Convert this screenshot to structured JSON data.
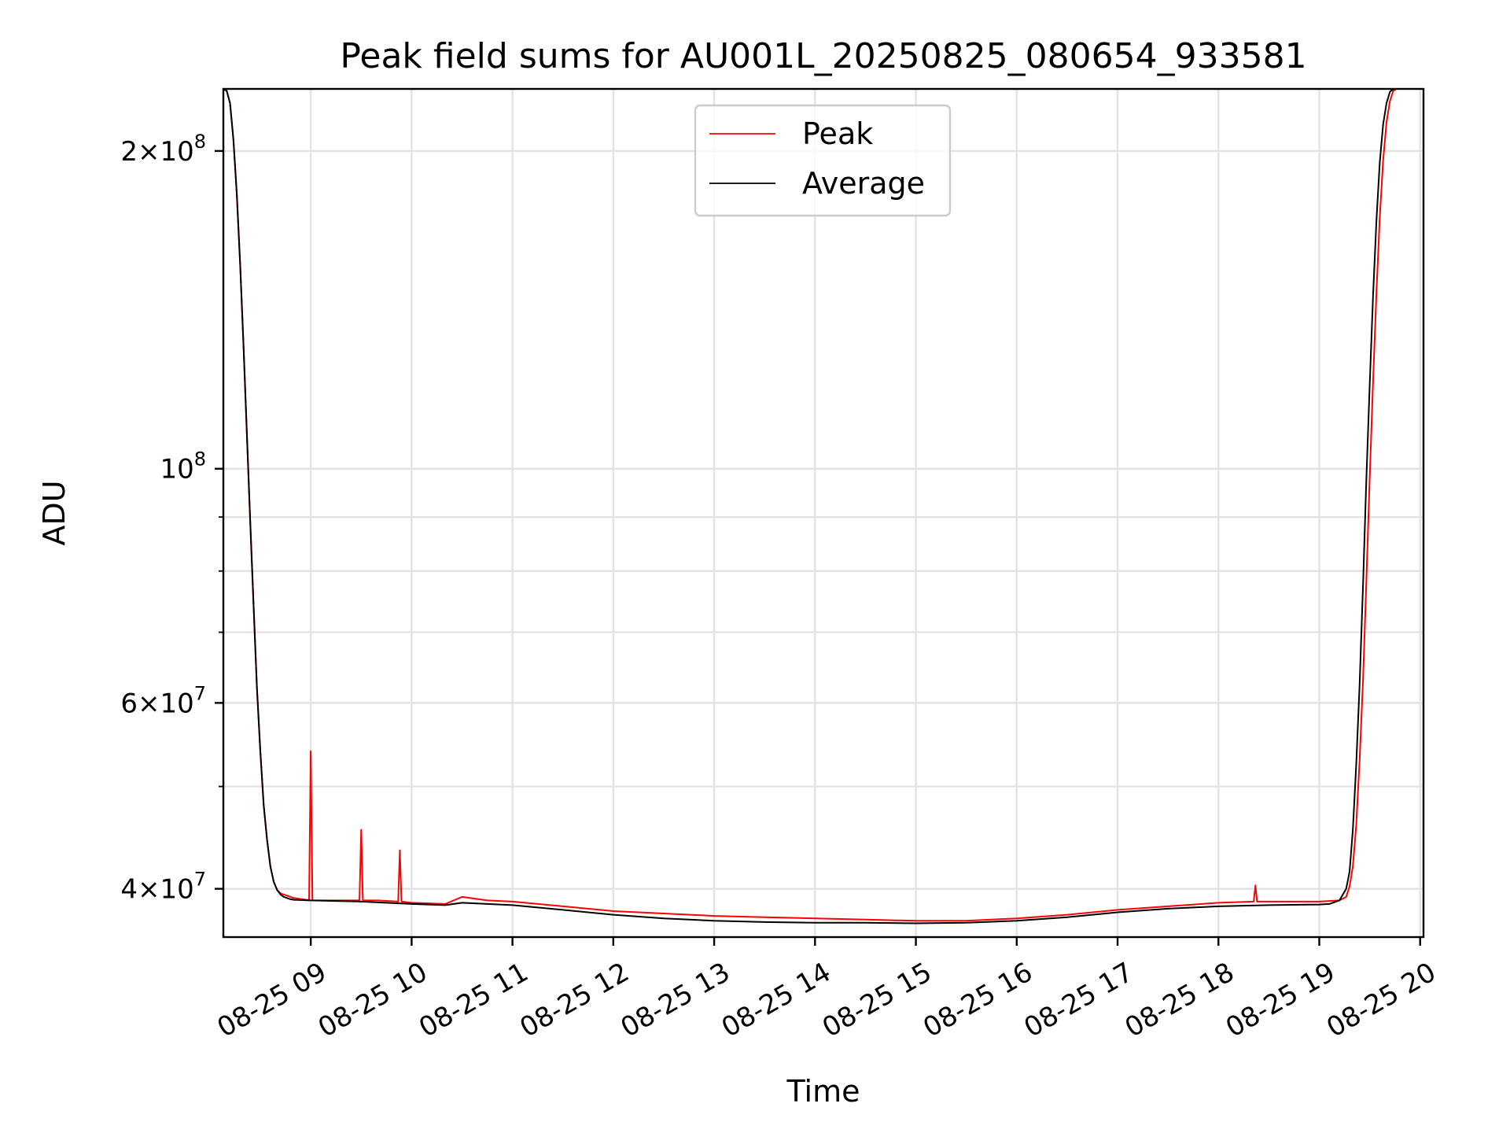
{
  "chart_data": {
    "type": "line",
    "title": "Peak field sums for AU001L_20250825_080654_933581",
    "xlabel": "Time",
    "ylabel": "ADU",
    "yscale": "log",
    "ylim": [
      36000000,
      229000000
    ],
    "xlim": [
      "2025-08-25 08:08",
      "2025-08-25 20:02"
    ],
    "grid": true,
    "legend_position": "top-center",
    "x_ticks": [
      "08-25 09",
      "08-25 10",
      "08-25 11",
      "08-25 12",
      "08-25 13",
      "08-25 14",
      "08-25 15",
      "08-25 16",
      "08-25 17",
      "08-25 18",
      "08-25 19",
      "08-25 20"
    ],
    "y_ticks": [
      {
        "value": 40000000,
        "mantissa": "4",
        "exp": "7"
      },
      {
        "value": 60000000,
        "mantissa": "6",
        "exp": "7"
      },
      {
        "value": 100000000,
        "mantissa": "",
        "exp": "8"
      },
      {
        "value": 200000000,
        "mantissa": "2",
        "exp": "8"
      }
    ],
    "series": [
      {
        "name": "Peak",
        "color": "#ff0000",
        "x": [
          "2025-08-25 08:08",
          "2025-08-25 08:10",
          "2025-08-25 08:12",
          "2025-08-25 08:14",
          "2025-08-25 08:16",
          "2025-08-25 08:18",
          "2025-08-25 08:20",
          "2025-08-25 08:22",
          "2025-08-25 08:24",
          "2025-08-25 08:26",
          "2025-08-25 08:28",
          "2025-08-25 08:30",
          "2025-08-25 08:32",
          "2025-08-25 08:34",
          "2025-08-25 08:36",
          "2025-08-25 08:38",
          "2025-08-25 08:40",
          "2025-08-25 08:42",
          "2025-08-25 08:44",
          "2025-08-25 08:46",
          "2025-08-25 08:48",
          "2025-08-25 08:50",
          "2025-08-25 08:55",
          "2025-08-25 08:59",
          "2025-08-25 09:00",
          "2025-08-25 09:01",
          "2025-08-25 09:10",
          "2025-08-25 09:18",
          "2025-08-25 09:29",
          "2025-08-25 09:30",
          "2025-08-25 09:31",
          "2025-08-25 09:40",
          "2025-08-25 09:52",
          "2025-08-25 09:53",
          "2025-08-25 09:54",
          "2025-08-25 10:00",
          "2025-08-25 10:20",
          "2025-08-25 10:30",
          "2025-08-25 10:45",
          "2025-08-25 11:00",
          "2025-08-25 11:30",
          "2025-08-25 12:00",
          "2025-08-25 12:30",
          "2025-08-25 13:00",
          "2025-08-25 13:30",
          "2025-08-25 14:00",
          "2025-08-25 14:30",
          "2025-08-25 15:00",
          "2025-08-25 15:30",
          "2025-08-25 16:00",
          "2025-08-25 16:30",
          "2025-08-25 17:00",
          "2025-08-25 17:30",
          "2025-08-25 18:00",
          "2025-08-25 18:21",
          "2025-08-25 18:22",
          "2025-08-25 18:23",
          "2025-08-25 18:30",
          "2025-08-25 19:00",
          "2025-08-25 19:06",
          "2025-08-25 19:12",
          "2025-08-25 19:16",
          "2025-08-25 19:18",
          "2025-08-25 19:20",
          "2025-08-25 19:22",
          "2025-08-25 19:24",
          "2025-08-25 19:26",
          "2025-08-25 19:28",
          "2025-08-25 19:30",
          "2025-08-25 19:32",
          "2025-08-25 19:34",
          "2025-08-25 19:36",
          "2025-08-25 19:38",
          "2025-08-25 19:40",
          "2025-08-25 19:42",
          "2025-08-25 19:44",
          "2025-08-25 19:46",
          "2025-08-25 19:48",
          "2025-08-25 19:50",
          "2025-08-25 19:52"
        ],
        "y": [
          229000000,
          228000000,
          222000000,
          205000000,
          182000000,
          156000000,
          131000000,
          108000000,
          89000000,
          74000000,
          62000000,
          54000000,
          48000000,
          44500000,
          42000000,
          40600000,
          39900000,
          39600000,
          39500000,
          39400000,
          39300000,
          39200000,
          39100000,
          39000000,
          54000000,
          39000000,
          39000000,
          39000000,
          39000000,
          45500000,
          39000000,
          39000000,
          38900000,
          43500000,
          38900000,
          38800000,
          38700000,
          39300000,
          39000000,
          38900000,
          38500000,
          38100000,
          37900000,
          37700000,
          37600000,
          37500000,
          37400000,
          37300000,
          37300000,
          37500000,
          37800000,
          38200000,
          38500000,
          38800000,
          38900000,
          40300000,
          38900000,
          38900000,
          38900000,
          38950000,
          39000000,
          39300000,
          40200000,
          42000000,
          46000000,
          53000000,
          63000000,
          78000000,
          98000000,
          121000000,
          147000000,
          173000000,
          196000000,
          213000000,
          223000000,
          228000000,
          229000000,
          229000000,
          229000000,
          229000000
        ]
      },
      {
        "name": "Average",
        "color": "#000000",
        "x": [
          "2025-08-25 08:08",
          "2025-08-25 08:10",
          "2025-08-25 08:12",
          "2025-08-25 08:14",
          "2025-08-25 08:16",
          "2025-08-25 08:18",
          "2025-08-25 08:20",
          "2025-08-25 08:22",
          "2025-08-25 08:24",
          "2025-08-25 08:26",
          "2025-08-25 08:28",
          "2025-08-25 08:30",
          "2025-08-25 08:32",
          "2025-08-25 08:34",
          "2025-08-25 08:36",
          "2025-08-25 08:38",
          "2025-08-25 08:40",
          "2025-08-25 08:42",
          "2025-08-25 08:44",
          "2025-08-25 08:46",
          "2025-08-25 08:48",
          "2025-08-25 08:50",
          "2025-08-25 09:00",
          "2025-08-25 09:30",
          "2025-08-25 09:45",
          "2025-08-25 10:00",
          "2025-08-25 10:20",
          "2025-08-25 10:30",
          "2025-08-25 10:45",
          "2025-08-25 11:00",
          "2025-08-25 11:30",
          "2025-08-25 12:00",
          "2025-08-25 12:30",
          "2025-08-25 13:00",
          "2025-08-25 13:30",
          "2025-08-25 14:00",
          "2025-08-25 14:30",
          "2025-08-25 15:00",
          "2025-08-25 15:30",
          "2025-08-25 16:00",
          "2025-08-25 16:30",
          "2025-08-25 17:00",
          "2025-08-25 17:30",
          "2025-08-25 18:00",
          "2025-08-25 18:30",
          "2025-08-25 19:00",
          "2025-08-25 19:06",
          "2025-08-25 19:12",
          "2025-08-25 19:16",
          "2025-08-25 19:18",
          "2025-08-25 19:20",
          "2025-08-25 19:22",
          "2025-08-25 19:24",
          "2025-08-25 19:26",
          "2025-08-25 19:28",
          "2025-08-25 19:30",
          "2025-08-25 19:32",
          "2025-08-25 19:34",
          "2025-08-25 19:36",
          "2025-08-25 19:38",
          "2025-08-25 19:40",
          "2025-08-25 19:42",
          "2025-08-25 19:44",
          "2025-08-25 19:46",
          "2025-08-25 19:48",
          "2025-08-25 19:50",
          "2025-08-25 19:52"
        ],
        "y": [
          229000000,
          228000000,
          222000000,
          205000000,
          182000000,
          156000000,
          131000000,
          108000000,
          89000000,
          74000000,
          62000000,
          54000000,
          48000000,
          44500000,
          42000000,
          40600000,
          39900000,
          39500000,
          39300000,
          39200000,
          39100000,
          39050000,
          39000000,
          38900000,
          38800000,
          38700000,
          38600000,
          38800000,
          38700000,
          38600000,
          38200000,
          37800000,
          37500000,
          37300000,
          37200000,
          37150000,
          37150000,
          37100000,
          37150000,
          37300000,
          37600000,
          38000000,
          38300000,
          38500000,
          38600000,
          38650000,
          38700000,
          39000000,
          40000000,
          41500000,
          45500000,
          52500000,
          62500000,
          77500000,
          97500000,
          120000000,
          146000000,
          172000000,
          195000000,
          212000000,
          222000000,
          227500000,
          229000000,
          229000000,
          229000000,
          229000000,
          229000000
        ]
      }
    ]
  }
}
